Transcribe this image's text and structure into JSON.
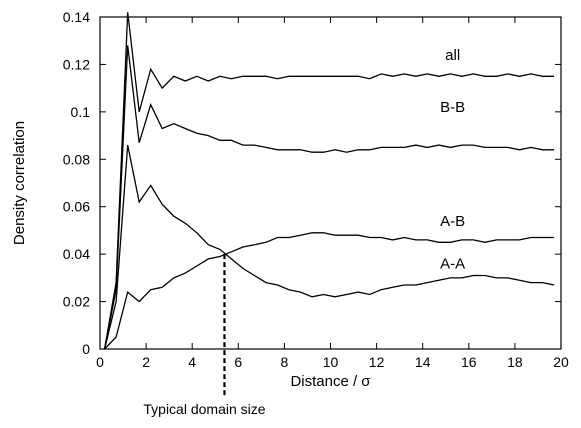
{
  "chart_data": {
    "type": "line",
    "title": "",
    "xlabel": "Distance / σ",
    "ylabel": "Density correlation",
    "xlim": [
      0,
      20
    ],
    "ylim": [
      0,
      0.14
    ],
    "xticks": [
      0,
      2,
      4,
      6,
      8,
      10,
      12,
      14,
      16,
      18,
      20
    ],
    "yticks": [
      0,
      0.02,
      0.04,
      0.06,
      0.08,
      0.1,
      0.12,
      0.14
    ],
    "xtick_labels": [
      "0",
      "2",
      "4",
      "6",
      "8",
      "10",
      "12",
      "14",
      "16",
      "18",
      "20"
    ],
    "ytick_labels": [
      "0",
      "0.02",
      "0.04",
      "0.06",
      "0.08",
      "0.1",
      "0.12",
      "0.14"
    ],
    "grid": false,
    "line_color": "#000000",
    "series": [
      {
        "name": "all",
        "label_at": [
          15.3,
          0.124
        ],
        "x": [
          0.2,
          0.7,
          1.2,
          1.7,
          2.2,
          2.7,
          3.2,
          3.7,
          4.2,
          4.7,
          5.2,
          5.7,
          6.2,
          6.7,
          7.2,
          7.7,
          8.2,
          8.7,
          9.2,
          9.7,
          10.2,
          10.7,
          11.2,
          11.7,
          12.2,
          12.7,
          13.2,
          13.7,
          14.2,
          14.7,
          15.2,
          15.7,
          16.2,
          16.7,
          17.2,
          17.7,
          18.2,
          18.7,
          19.2,
          19.7
        ],
        "y": [
          0,
          0.028,
          0.142,
          0.1,
          0.118,
          0.11,
          0.115,
          0.113,
          0.115,
          0.113,
          0.115,
          0.114,
          0.115,
          0.115,
          0.115,
          0.114,
          0.115,
          0.115,
          0.115,
          0.115,
          0.115,
          0.115,
          0.115,
          0.114,
          0.116,
          0.115,
          0.116,
          0.115,
          0.116,
          0.115,
          0.116,
          0.115,
          0.116,
          0.115,
          0.115,
          0.116,
          0.115,
          0.116,
          0.115,
          0.115
        ]
      },
      {
        "name": "B-B",
        "label_at": [
          15.3,
          0.102
        ],
        "x": [
          0.2,
          0.7,
          1.2,
          1.7,
          2.2,
          2.7,
          3.2,
          3.7,
          4.2,
          4.7,
          5.2,
          5.7,
          6.2,
          6.7,
          7.2,
          7.7,
          8.2,
          8.7,
          9.2,
          9.7,
          10.2,
          10.7,
          11.2,
          11.7,
          12.2,
          12.7,
          13.2,
          13.7,
          14.2,
          14.7,
          15.2,
          15.7,
          16.2,
          16.7,
          17.2,
          17.7,
          18.2,
          18.7,
          19.2,
          19.7
        ],
        "y": [
          0,
          0.025,
          0.128,
          0.087,
          0.103,
          0.093,
          0.095,
          0.093,
          0.091,
          0.09,
          0.088,
          0.088,
          0.086,
          0.086,
          0.085,
          0.084,
          0.084,
          0.084,
          0.083,
          0.083,
          0.084,
          0.083,
          0.084,
          0.084,
          0.085,
          0.085,
          0.085,
          0.086,
          0.085,
          0.086,
          0.085,
          0.086,
          0.086,
          0.085,
          0.085,
          0.085,
          0.084,
          0.085,
          0.084,
          0.084
        ]
      },
      {
        "name": "A-B",
        "label_at": [
          15.3,
          0.054
        ],
        "x": [
          0.2,
          0.7,
          1.2,
          1.7,
          2.2,
          2.7,
          3.2,
          3.7,
          4.2,
          4.7,
          5.2,
          5.7,
          6.2,
          6.7,
          7.2,
          7.7,
          8.2,
          8.7,
          9.2,
          9.7,
          10.2,
          10.7,
          11.2,
          11.7,
          12.2,
          12.7,
          13.2,
          13.7,
          14.2,
          14.7,
          15.2,
          15.7,
          16.2,
          16.7,
          17.2,
          17.7,
          18.2,
          18.7,
          19.2,
          19.7
        ],
        "y": [
          0,
          0.005,
          0.024,
          0.02,
          0.025,
          0.026,
          0.03,
          0.032,
          0.035,
          0.038,
          0.039,
          0.041,
          0.043,
          0.044,
          0.045,
          0.047,
          0.047,
          0.048,
          0.049,
          0.049,
          0.048,
          0.048,
          0.048,
          0.047,
          0.047,
          0.046,
          0.047,
          0.046,
          0.046,
          0.045,
          0.045,
          0.046,
          0.046,
          0.045,
          0.046,
          0.046,
          0.046,
          0.047,
          0.047,
          0.047
        ]
      },
      {
        "name": "A-A",
        "label_at": [
          15.3,
          0.036
        ],
        "x": [
          0.2,
          0.7,
          1.2,
          1.7,
          2.2,
          2.7,
          3.2,
          3.7,
          4.2,
          4.7,
          5.2,
          5.7,
          6.2,
          6.7,
          7.2,
          7.7,
          8.2,
          8.7,
          9.2,
          9.7,
          10.2,
          10.7,
          11.2,
          11.7,
          12.2,
          12.7,
          13.2,
          13.7,
          14.2,
          14.7,
          15.2,
          15.7,
          16.2,
          16.7,
          17.2,
          17.7,
          18.2,
          18.7,
          19.2,
          19.7
        ],
        "y": [
          0,
          0.02,
          0.086,
          0.062,
          0.069,
          0.061,
          0.056,
          0.053,
          0.049,
          0.044,
          0.042,
          0.038,
          0.034,
          0.031,
          0.028,
          0.027,
          0.025,
          0.024,
          0.022,
          0.023,
          0.022,
          0.023,
          0.024,
          0.023,
          0.025,
          0.026,
          0.027,
          0.027,
          0.028,
          0.029,
          0.03,
          0.03,
          0.031,
          0.031,
          0.03,
          0.03,
          0.029,
          0.028,
          0.028,
          0.027
        ]
      }
    ],
    "annotation": {
      "text": "Typical domain size",
      "x": 5.4,
      "y_start": 0.04
    }
  }
}
